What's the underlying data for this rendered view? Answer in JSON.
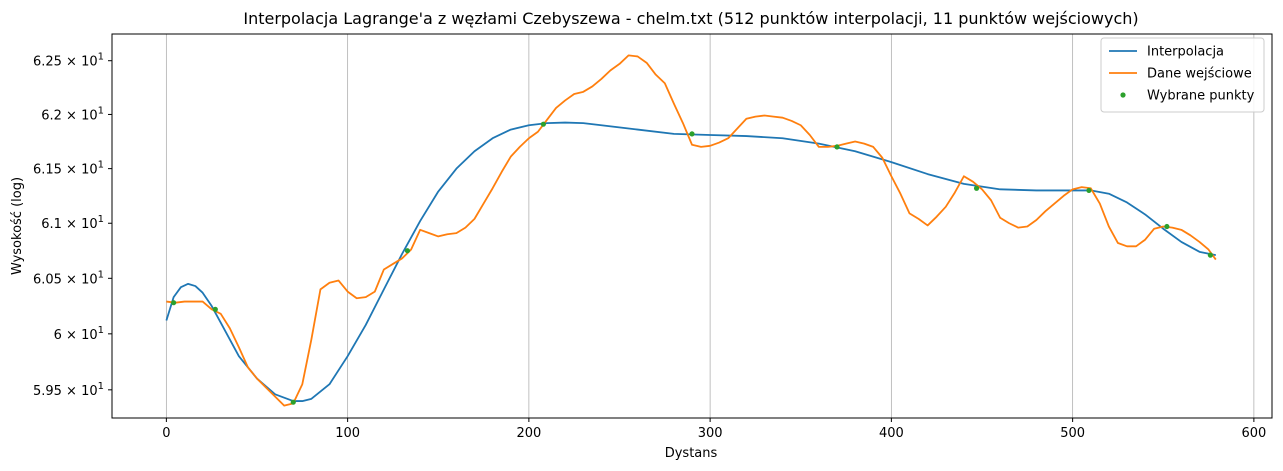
{
  "chart_data": {
    "type": "line",
    "title": "Interpolacja Lagrange'a z węzłami Czebyszewa - chelm.txt (512 punktów interpolacji, 11 punktów wejściowych)",
    "xlabel": "Dystans",
    "ylabel": "Wysokość (log)",
    "xlim": [
      -30,
      610
    ],
    "ylim": [
      59.25,
      62.75
    ],
    "y_scale": "log",
    "grid": "vertical",
    "legend_position": "top-right",
    "x_ticks": [
      {
        "value": 0,
        "label": "0"
      },
      {
        "value": 100,
        "label": "100"
      },
      {
        "value": 200,
        "label": "200"
      },
      {
        "value": 300,
        "label": "300"
      },
      {
        "value": 400,
        "label": "400"
      },
      {
        "value": 500,
        "label": "500"
      },
      {
        "value": 600,
        "label": "600"
      }
    ],
    "y_ticks": [
      {
        "value": 59.5,
        "mant": "5.95",
        "exp": "1"
      },
      {
        "value": 60.0,
        "mant": "6",
        "exp": "1"
      },
      {
        "value": 60.5,
        "mant": "6.05",
        "exp": "1"
      },
      {
        "value": 61.0,
        "mant": "6.1",
        "exp": "1"
      },
      {
        "value": 61.5,
        "mant": "6.15",
        "exp": "1"
      },
      {
        "value": 62.0,
        "mant": "6.2",
        "exp": "1"
      },
      {
        "value": 62.5,
        "mant": "6.25",
        "exp": "1"
      }
    ],
    "series": [
      {
        "name": "Interpolacja",
        "color": "#1f77b4",
        "style": "line",
        "x": [
          0,
          4,
          8,
          12,
          16,
          20,
          25,
          30,
          40,
          50,
          60,
          70,
          75,
          80,
          90,
          100,
          110,
          120,
          130,
          140,
          150,
          160,
          170,
          180,
          190,
          200,
          210,
          220,
          230,
          240,
          260,
          280,
          300,
          320,
          340,
          360,
          380,
          400,
          420,
          440,
          460,
          480,
          500,
          510,
          520,
          530,
          540,
          550,
          560,
          570,
          579
        ],
        "y": [
          60.12,
          60.33,
          60.42,
          60.45,
          60.43,
          60.37,
          60.25,
          60.1,
          59.8,
          59.6,
          59.46,
          59.4,
          59.4,
          59.42,
          59.55,
          59.8,
          60.08,
          60.4,
          60.72,
          61.02,
          61.29,
          61.5,
          61.66,
          61.78,
          61.86,
          61.9,
          61.92,
          61.925,
          61.92,
          61.9,
          61.86,
          61.82,
          61.81,
          61.8,
          61.78,
          61.73,
          61.66,
          61.56,
          61.45,
          61.36,
          61.31,
          61.3,
          61.3,
          61.3,
          61.27,
          61.19,
          61.08,
          60.95,
          60.83,
          60.74,
          60.71
        ]
      },
      {
        "name": "Dane wejściowe",
        "color": "#ff7f0e",
        "style": "line",
        "x": [
          0,
          5,
          10,
          20,
          25,
          30,
          35,
          40,
          45,
          50,
          55,
          60,
          65,
          70,
          75,
          80,
          85,
          90,
          95,
          100,
          105,
          110,
          115,
          120,
          125,
          130,
          135,
          140,
          145,
          150,
          155,
          160,
          165,
          170,
          175,
          180,
          185,
          190,
          195,
          200,
          205,
          210,
          215,
          220,
          225,
          230,
          235,
          240,
          245,
          250,
          255,
          260,
          265,
          270,
          275,
          280,
          285,
          290,
          295,
          300,
          305,
          310,
          315,
          320,
          325,
          330,
          335,
          340,
          345,
          350,
          355,
          360,
          365,
          370,
          375,
          380,
          385,
          390,
          395,
          400,
          405,
          410,
          415,
          420,
          425,
          430,
          435,
          440,
          445,
          450,
          455,
          460,
          465,
          470,
          475,
          480,
          485,
          490,
          495,
          500,
          505,
          510,
          515,
          520,
          525,
          530,
          535,
          540,
          545,
          550,
          555,
          560,
          565,
          570,
          575,
          579
        ],
        "y": [
          60.29,
          60.28,
          60.29,
          60.29,
          60.22,
          60.18,
          60.05,
          59.88,
          59.7,
          59.6,
          59.52,
          59.44,
          59.36,
          59.38,
          59.55,
          59.95,
          60.4,
          60.46,
          60.48,
          60.38,
          60.32,
          60.33,
          60.38,
          60.58,
          60.63,
          60.68,
          60.76,
          60.94,
          60.91,
          60.88,
          60.9,
          60.91,
          60.96,
          61.04,
          61.18,
          61.32,
          61.47,
          61.61,
          61.7,
          61.78,
          61.84,
          61.95,
          62.06,
          62.13,
          62.19,
          62.21,
          62.26,
          62.33,
          62.41,
          62.47,
          62.55,
          62.54,
          62.48,
          62.37,
          62.29,
          62.1,
          61.92,
          61.72,
          61.7,
          61.71,
          61.74,
          61.78,
          61.87,
          61.96,
          61.98,
          61.99,
          61.98,
          61.97,
          61.94,
          61.9,
          61.81,
          61.7,
          61.7,
          61.71,
          61.73,
          61.75,
          61.73,
          61.7,
          61.6,
          61.43,
          61.27,
          61.09,
          61.04,
          60.98,
          61.06,
          61.15,
          61.28,
          61.43,
          61.38,
          61.31,
          61.21,
          61.05,
          61.0,
          60.96,
          60.97,
          61.03,
          61.11,
          61.18,
          61.25,
          61.31,
          61.33,
          61.32,
          61.18,
          60.97,
          60.82,
          60.79,
          60.79,
          60.85,
          60.95,
          60.97,
          60.96,
          60.94,
          60.89,
          60.83,
          60.76,
          60.67
        ]
      },
      {
        "name": "Wybrane punkty",
        "color": "#2ca02c",
        "style": "markers",
        "x": [
          4,
          27,
          70,
          133,
          208,
          290,
          370,
          447,
          509,
          552,
          576
        ],
        "y": [
          60.28,
          60.22,
          59.39,
          60.75,
          61.91,
          61.82,
          61.7,
          61.32,
          61.3,
          60.97,
          60.71
        ]
      }
    ]
  }
}
